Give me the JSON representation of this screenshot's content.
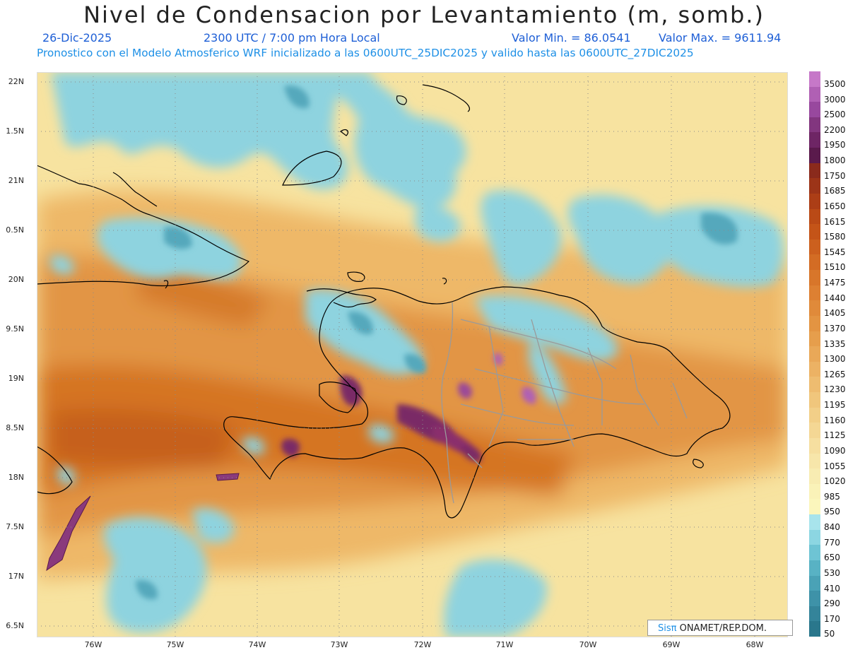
{
  "header": {
    "title": "Nivel de Condensacion por Levantamiento (m, somb.)",
    "date": "26-Dic-2025",
    "time": "2300 UTC / 7:00 pm Hora Local",
    "vmin": "Valor Min. = 86.0541",
    "vmax": "Valor Max. = 9611.94",
    "forecast": "Pronostico con el Modelo Atmosferico WRF inicializado a las 0600UTC_25DIC2025 y valido hasta las  0600UTC_27DIC2025"
  },
  "axes": {
    "lat_labels": [
      "22N",
      "1.5N",
      "21N",
      "0.5N",
      "20N",
      "9.5N",
      "19N",
      "8.5N",
      "18N",
      "7.5N",
      "17N",
      "6.5N"
    ],
    "lon_labels": [
      "76W",
      "75W",
      "74W",
      "73W",
      "72W",
      "71W",
      "70W",
      "69W",
      "68W"
    ]
  },
  "colorbar": {
    "labels": [
      "3500",
      "3000",
      "2500",
      "2200",
      "1950",
      "1800",
      "1750",
      "1685",
      "1650",
      "1615",
      "1580",
      "1545",
      "1510",
      "1475",
      "1440",
      "1405",
      "1370",
      "1335",
      "1300",
      "1265",
      "1230",
      "1195",
      "1160",
      "1125",
      "1090",
      "1055",
      "1020",
      "985",
      "950",
      "840",
      "770",
      "650",
      "530",
      "410",
      "290",
      "170",
      "50"
    ],
    "colors": [
      "#c678c8",
      "#b060b4",
      "#98489e",
      "#82367f",
      "#6e2565",
      "#5a1a4c",
      "#8a2a1c",
      "#9c3418",
      "#ac3e16",
      "#ba4a16",
      "#c45418",
      "#cc601e",
      "#d36c24",
      "#d8762a",
      "#dd8032",
      "#e08a3a",
      "#e39442",
      "#e69e4c",
      "#e9a858",
      "#ecb264",
      "#eebc70",
      "#f0c67c",
      "#f2cf88",
      "#f4d794",
      "#f6dfa0",
      "#f7e6aa",
      "#f8ecb2",
      "#faf2b8",
      "#fbf6bc",
      "#a8e4ec",
      "#8cd6e2",
      "#6ec4d4",
      "#58b2c4",
      "#4aa2b6",
      "#3e92a8",
      "#34849a",
      "#2a778c"
    ]
  },
  "credit": {
    "sis": "Sisπ",
    "rest": " ONAMET/REP.DOM."
  }
}
